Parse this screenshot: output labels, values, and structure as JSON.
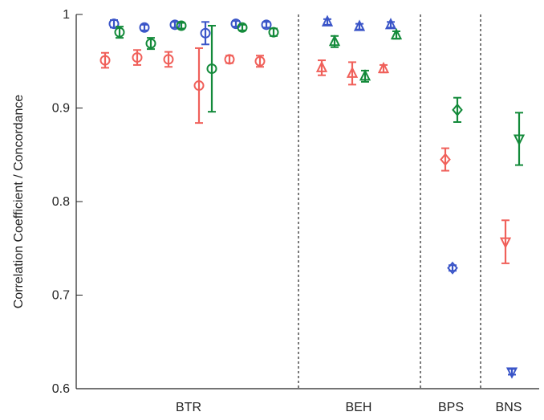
{
  "chart_data": {
    "type": "scatter",
    "title": "",
    "xlabel": "",
    "ylabel": "Correlation Coefficient / Concordance",
    "ylim": [
      0.6,
      1.0
    ],
    "yticks": [
      "0.6",
      "0.7",
      "0.8",
      "0.9",
      "1"
    ],
    "categories": [
      "BTR",
      "BEH",
      "BPS",
      "BNS"
    ],
    "grid": false,
    "legend": "none",
    "separators": "dashed vertical lines between groups",
    "colors": {
      "blue": "#3a55c8",
      "red": "#f0605a",
      "green": "#138a3a",
      "axis": "#222222"
    },
    "series": [
      {
        "color": "blue",
        "points": [
          {
            "group": "BTR",
            "marker": "circle",
            "y": 0.99,
            "err": 0.004
          },
          {
            "group": "BTR",
            "marker": "circle",
            "y": 0.986,
            "err": 0.003
          },
          {
            "group": "BTR",
            "marker": "circle",
            "y": 0.989,
            "err": 0.003
          },
          {
            "group": "BTR",
            "marker": "circle",
            "y": 0.98,
            "err": 0.012
          },
          {
            "group": "BTR",
            "marker": "circle",
            "y": 0.99,
            "err": 0.003
          },
          {
            "group": "BTR",
            "marker": "circle",
            "y": 0.989,
            "err": 0.003
          },
          {
            "group": "BEH",
            "marker": "triangle-up",
            "y": 0.992,
            "err": 0.003
          },
          {
            "group": "BEH",
            "marker": "triangle-up",
            "y": 0.987,
            "err": 0.003
          },
          {
            "group": "BEH",
            "marker": "triangle-up",
            "y": 0.989,
            "err": 0.003
          },
          {
            "group": "BPS",
            "marker": "diamond",
            "y": 0.729,
            "err": 0.003
          },
          {
            "group": "BNS",
            "marker": "triangle-down",
            "y": 0.618,
            "err": 0.003
          }
        ]
      },
      {
        "color": "red",
        "points": [
          {
            "group": "BTR",
            "marker": "circle",
            "y": 0.951,
            "err": 0.008
          },
          {
            "group": "BTR",
            "marker": "circle",
            "y": 0.954,
            "err": 0.008
          },
          {
            "group": "BTR",
            "marker": "circle",
            "y": 0.952,
            "err": 0.008
          },
          {
            "group": "BTR",
            "marker": "circle",
            "y": 0.924,
            "err": 0.04
          },
          {
            "group": "BTR",
            "marker": "circle",
            "y": 0.952,
            "err": 0.004
          },
          {
            "group": "BTR",
            "marker": "circle",
            "y": 0.95,
            "err": 0.006
          },
          {
            "group": "BEH",
            "marker": "triangle-up",
            "y": 0.943,
            "err": 0.008
          },
          {
            "group": "BEH",
            "marker": "triangle-up",
            "y": 0.937,
            "err": 0.012
          },
          {
            "group": "BEH",
            "marker": "triangle-up",
            "y": 0.942,
            "err": 0.004
          },
          {
            "group": "BPS",
            "marker": "diamond",
            "y": 0.845,
            "err": 0.012
          },
          {
            "group": "BNS",
            "marker": "triangle-down",
            "y": 0.757,
            "err": 0.023
          }
        ]
      },
      {
        "color": "green",
        "points": [
          {
            "group": "BTR",
            "marker": "circle",
            "y": 0.981,
            "err": 0.006
          },
          {
            "group": "BTR",
            "marker": "circle",
            "y": 0.969,
            "err": 0.006
          },
          {
            "group": "BTR",
            "marker": "circle",
            "y": 0.988,
            "err": 0.003
          },
          {
            "group": "BTR",
            "marker": "circle",
            "y": 0.942,
            "err": 0.046
          },
          {
            "group": "BTR",
            "marker": "circle",
            "y": 0.986,
            "err": 0.003
          },
          {
            "group": "BTR",
            "marker": "circle",
            "y": 0.981,
            "err": 0.004
          },
          {
            "group": "BEH",
            "marker": "triangle-up",
            "y": 0.971,
            "err": 0.006
          },
          {
            "group": "BEH",
            "marker": "triangle-up",
            "y": 0.934,
            "err": 0.006
          },
          {
            "group": "BEH",
            "marker": "triangle-up",
            "y": 0.978,
            "err": 0.004
          },
          {
            "group": "BPS",
            "marker": "diamond",
            "y": 0.898,
            "err": 0.013
          },
          {
            "group": "BNS",
            "marker": "triangle-down",
            "y": 0.867,
            "err": 0.028
          }
        ]
      }
    ]
  }
}
